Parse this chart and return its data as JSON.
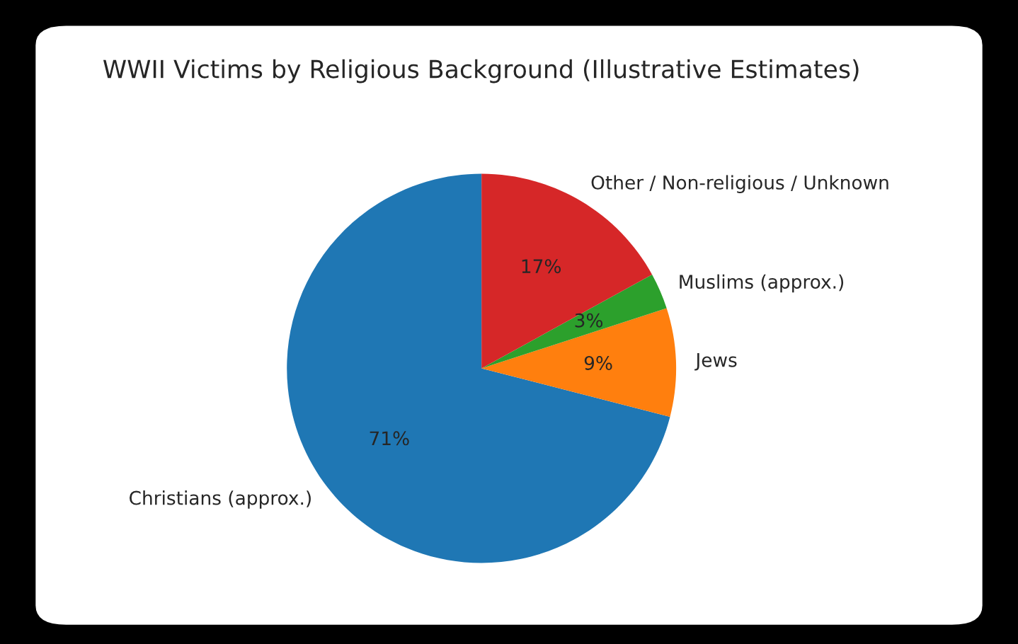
{
  "chart_data": {
    "type": "pie",
    "title": "WWII Victims by Religious Background (Illustrative Estimates)",
    "categories": [
      "Christians (approx.)",
      "Jews",
      "Muslims (approx.)",
      "Other / Non-religious / Unknown"
    ],
    "values": [
      71,
      9,
      3,
      17
    ],
    "colors": [
      "#1f77b4",
      "#ff7f0e",
      "#2ca02c",
      "#d62728"
    ],
    "value_labels": [
      "71%",
      "9%",
      "3%",
      "17%"
    ]
  }
}
